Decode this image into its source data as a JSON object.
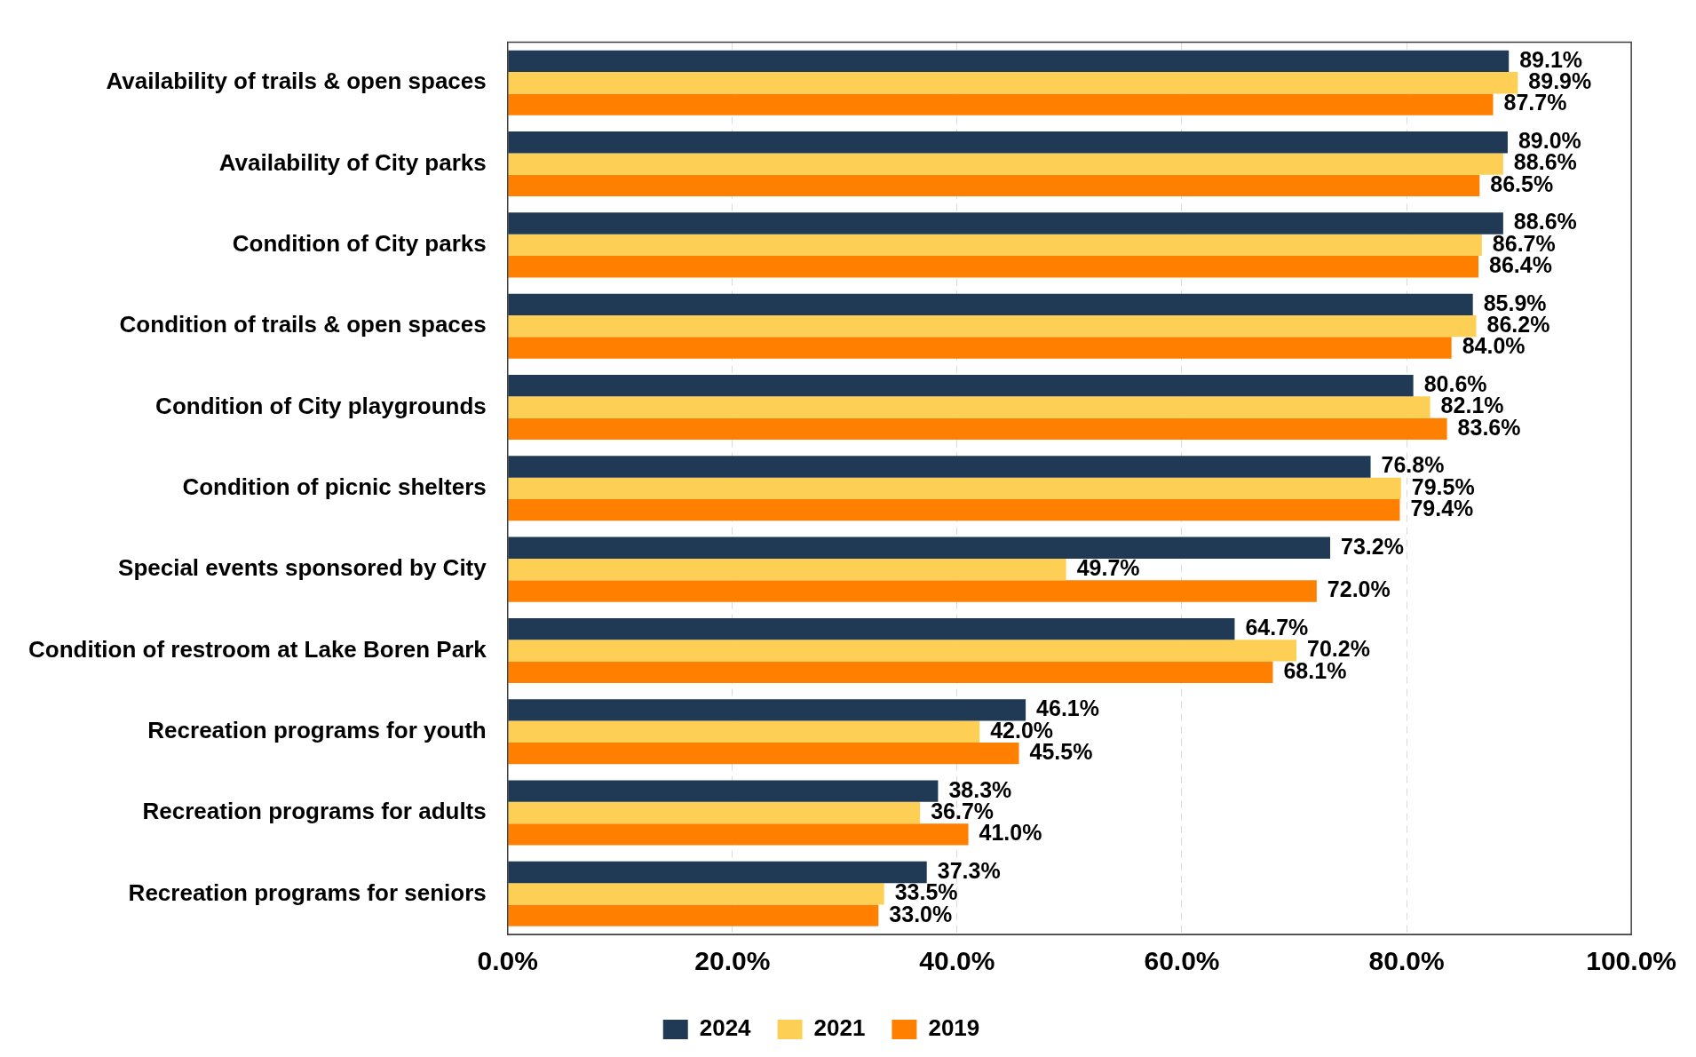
{
  "chart_data": {
    "type": "bar",
    "orientation": "horizontal",
    "categories": [
      "Availability of trails & open spaces",
      "Availability of City parks",
      "Condition of City parks",
      "Condition of trails & open spaces",
      "Condition of City playgrounds",
      "Condition of picnic shelters",
      "Special events sponsored by City",
      "Condition of restroom at Lake Boren Park",
      "Recreation programs for youth",
      "Recreation programs for adults",
      "Recreation programs for seniors"
    ],
    "series": [
      {
        "name": "2024",
        "color": "#203a56",
        "values": [
          89.1,
          89.0,
          88.6,
          85.9,
          80.6,
          76.8,
          73.2,
          64.7,
          46.1,
          38.3,
          37.3
        ],
        "value_labels": [
          "89.1%",
          "89.0%",
          "88.6%",
          "85.9%",
          "80.6%",
          "76.8%",
          "73.2%",
          "64.7%",
          "46.1%",
          "38.3%",
          "37.3%"
        ]
      },
      {
        "name": "2021",
        "color": "#fdd055",
        "values": [
          89.9,
          88.6,
          86.7,
          86.2,
          82.1,
          79.5,
          49.7,
          70.2,
          42.0,
          36.7,
          33.5
        ],
        "value_labels": [
          "89.9%",
          "88.6%",
          "86.7%",
          "86.2%",
          "82.1%",
          "79.5%",
          "49.7%",
          "70.2%",
          "42.0%",
          "36.7%",
          "33.5%"
        ]
      },
      {
        "name": "2019",
        "color": "#ff8000",
        "values": [
          87.7,
          86.5,
          86.4,
          84.0,
          83.6,
          79.4,
          72.0,
          68.1,
          45.5,
          41.0,
          33.0
        ],
        "value_labels": [
          "87.7%",
          "86.5%",
          "86.4%",
          "84.0%",
          "83.6%",
          "79.4%",
          "72.0%",
          "68.1%",
          "45.5%",
          "41.0%",
          "33.0%"
        ]
      }
    ],
    "xlim": [
      0,
      100
    ],
    "xticks": [
      {
        "value": 0,
        "label": "0.0%"
      },
      {
        "value": 20,
        "label": "20.0%"
      },
      {
        "value": 40,
        "label": "40.0%"
      },
      {
        "value": 60,
        "label": "60.0%"
      },
      {
        "value": 80,
        "label": "80.0%"
      },
      {
        "value": 100,
        "label": "100.0%"
      }
    ],
    "grid": "x",
    "legend": "bottom"
  }
}
